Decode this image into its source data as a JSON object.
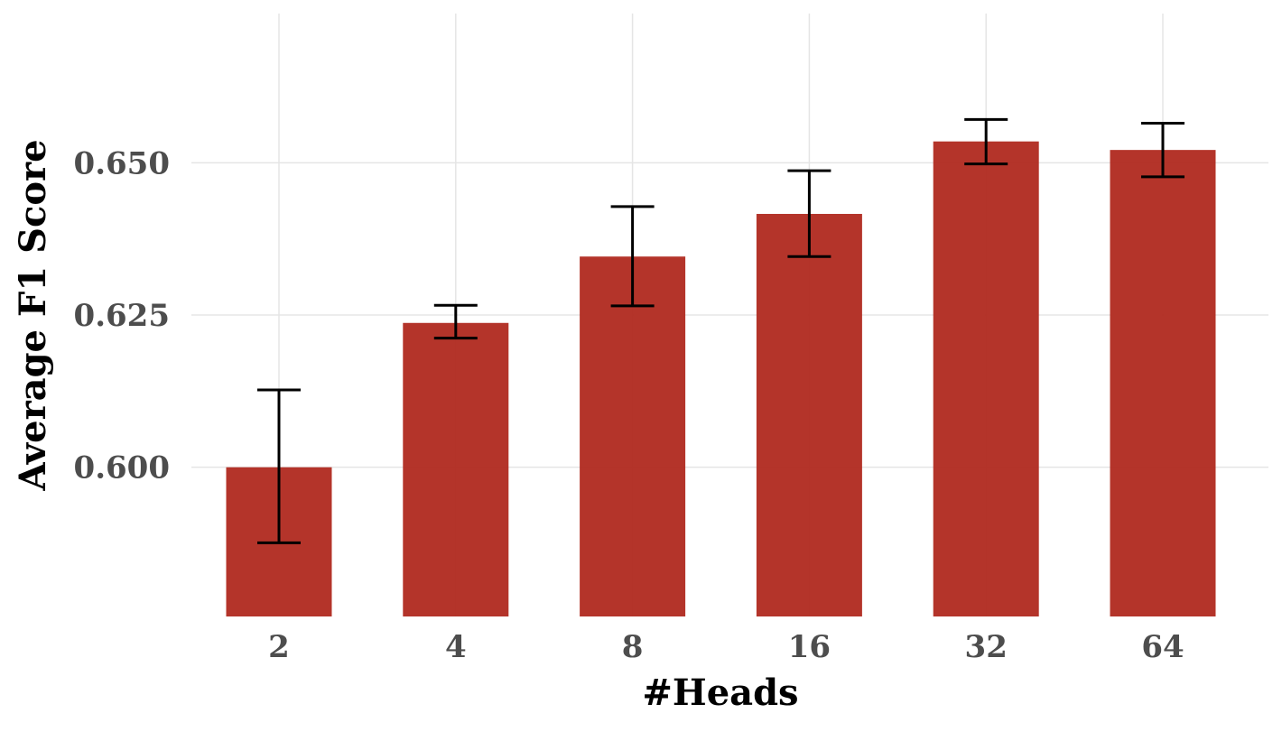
{
  "chart_data": {
    "type": "bar",
    "categories": [
      "2",
      "4",
      "8",
      "16",
      "32",
      "64"
    ],
    "values": [
      0.6,
      0.6237,
      0.6346,
      0.6416,
      0.6535,
      0.6521
    ],
    "error_low": [
      0.5876,
      0.6212,
      0.6265,
      0.6346,
      0.6498,
      0.6477
    ],
    "error_high": [
      0.6127,
      0.6266,
      0.6428,
      0.6487,
      0.6571,
      0.6565
    ],
    "title": "",
    "xlabel": "#Heads",
    "ylabel": "Average F1 Score",
    "ylim": [
      0.5755,
      0.6745
    ],
    "yticks": [
      0.6,
      0.625,
      0.65
    ],
    "ytick_labels": [
      "0.600",
      "0.625",
      "0.650"
    ],
    "grid": true,
    "bar_color": "#b0291f",
    "error_color": "#000000"
  }
}
